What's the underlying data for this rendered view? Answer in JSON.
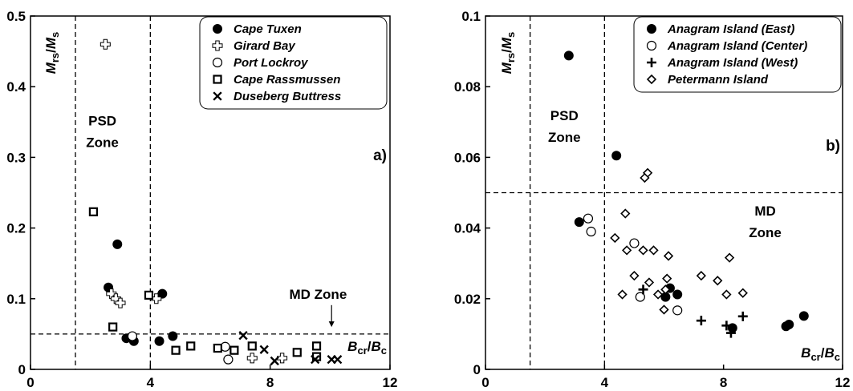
{
  "chart_data": [
    {
      "type": "scatter",
      "panel_label": "a)",
      "xlabel": {
        "main": "B",
        "sub": "cr",
        "sep": "/",
        "main2": "B",
        "sub2": "c"
      },
      "ylabel": {
        "main": "M",
        "sub": "rs",
        "sep": "/",
        "main2": "M",
        "sub2": "s"
      },
      "xlim": [
        0,
        12
      ],
      "ylim": [
        0,
        0.5
      ],
      "xticks": [
        0,
        4,
        8,
        12
      ],
      "xtick_labels": [
        "0",
        "4",
        "8",
        "12"
      ],
      "yticks": [
        0,
        0.1,
        0.2,
        0.3,
        0.4,
        0.5
      ],
      "ytick_labels": [
        "0",
        "0.1",
        "0.2",
        "0.3",
        "0.4",
        "0.5"
      ],
      "legend_position": "top-right",
      "zone_labels": [
        {
          "text": [
            "PSD",
            "Zone"
          ],
          "x": 2.4,
          "y": 0.345
        },
        {
          "text": [
            "MD Zone"
          ],
          "x": 9.6,
          "y": 0.1,
          "arrow_to": [
            10.05,
            0.06
          ]
        }
      ],
      "dashed_lines": [
        {
          "orientation": "vertical",
          "value": 1.5
        },
        {
          "orientation": "vertical",
          "value": 4
        },
        {
          "orientation": "horizontal",
          "value": 0.05
        }
      ],
      "series": [
        {
          "name": "Cape Tuxen",
          "marker": "filled-circle",
          "x": [
            2.6,
            2.9,
            3.2,
            3.45,
            4.3,
            4.4,
            4.75
          ],
          "y": [
            0.116,
            0.177,
            0.044,
            0.04,
            0.04,
            0.107,
            0.047
          ]
        },
        {
          "name": "Girard Bay",
          "marker": "open-cross",
          "x": [
            2.5,
            2.7,
            2.85,
            3.0,
            4.2,
            7.4,
            8.4
          ],
          "y": [
            0.46,
            0.107,
            0.1,
            0.094,
            0.1,
            0.016,
            0.016
          ]
        },
        {
          "name": "Port Lockroy",
          "marker": "open-circle",
          "x": [
            3.4,
            6.5,
            6.6
          ],
          "y": [
            0.047,
            0.032,
            0.014
          ]
        },
        {
          "name": "Cape Rassmussen",
          "marker": "open-square",
          "x": [
            2.1,
            2.75,
            3.95,
            4.85,
            5.35,
            6.25,
            6.8,
            7.4,
            8.9,
            9.55,
            9.55
          ],
          "y": [
            0.223,
            0.06,
            0.105,
            0.027,
            0.033,
            0.03,
            0.027,
            0.033,
            0.024,
            0.018,
            0.033
          ]
        },
        {
          "name": "Duseberg Buttress",
          "marker": "x",
          "x": [
            7.1,
            7.8,
            8.15,
            9.5,
            10.05,
            10.25
          ],
          "y": [
            0.048,
            0.028,
            0.012,
            0.014,
            0.014,
            0.014
          ]
        }
      ]
    },
    {
      "type": "scatter",
      "panel_label": "b)",
      "xlabel": {
        "main": "B",
        "sub": "cr",
        "sep": "/",
        "main2": "B",
        "sub2": "c"
      },
      "ylabel": {
        "main": "M",
        "sub": "rs",
        "sep": "/",
        "main2": "M",
        "sub2": "s"
      },
      "xlim": [
        0,
        12
      ],
      "ylim": [
        0,
        0.1
      ],
      "xticks": [
        0,
        4,
        8,
        12
      ],
      "xtick_labels": [
        "0",
        "4",
        "8",
        "12"
      ],
      "yticks": [
        0,
        0.02,
        0.04,
        0.06,
        0.08,
        0.1
      ],
      "ytick_labels": [
        "0",
        "0.02",
        "0.04",
        "0.06",
        "0.08",
        "0.1"
      ],
      "legend_position": "top-right",
      "zone_labels": [
        {
          "text": [
            "PSD",
            "Zone"
          ],
          "x": 2.65,
          "y": 0.0705
        },
        {
          "text": [
            "MD",
            "Zone"
          ],
          "x": 9.4,
          "y": 0.0435
        }
      ],
      "dashed_lines": [
        {
          "orientation": "vertical",
          "value": 1.5
        },
        {
          "orientation": "vertical",
          "value": 4
        },
        {
          "orientation": "horizontal",
          "value": 0.05
        }
      ],
      "series": [
        {
          "name": "Anagram Island (East)",
          "marker": "filled-circle",
          "x": [
            2.8,
            3.15,
            4.4,
            6.05,
            6.2,
            6.45,
            8.3,
            10.1,
            10.2,
            10.7
          ],
          "y": [
            0.0888,
            0.0417,
            0.0605,
            0.0205,
            0.023,
            0.0212,
            0.0117,
            0.0122,
            0.0127,
            0.0151
          ]
        },
        {
          "name": "Anagram Island (Center)",
          "marker": "open-circle",
          "x": [
            3.45,
            3.55,
            5.0,
            5.2,
            6.45
          ],
          "y": [
            0.0427,
            0.039,
            0.0357,
            0.0205,
            0.0167
          ]
        },
        {
          "name": "Anagram Island (West)",
          "marker": "plus",
          "x": [
            5.3,
            7.25,
            8.1,
            8.25,
            8.65
          ],
          "y": [
            0.0226,
            0.0138,
            0.0124,
            0.0103,
            0.015
          ]
        },
        {
          "name": "Petermann Island",
          "marker": "open-diamond",
          "x": [
            4.35,
            4.6,
            4.7,
            4.75,
            5.0,
            5.3,
            5.45,
            5.35,
            5.5,
            5.65,
            5.8,
            6.0,
            6.05,
            6.1,
            6.15,
            7.25,
            7.8,
            8.1,
            8.2,
            8.65
          ],
          "y": [
            0.0372,
            0.0212,
            0.0441,
            0.0337,
            0.0265,
            0.0337,
            0.0556,
            0.0542,
            0.0246,
            0.0337,
            0.0212,
            0.0169,
            0.0226,
            0.0257,
            0.0321,
            0.0265,
            0.0251,
            0.0212,
            0.0316,
            0.0216
          ]
        }
      ]
    }
  ]
}
